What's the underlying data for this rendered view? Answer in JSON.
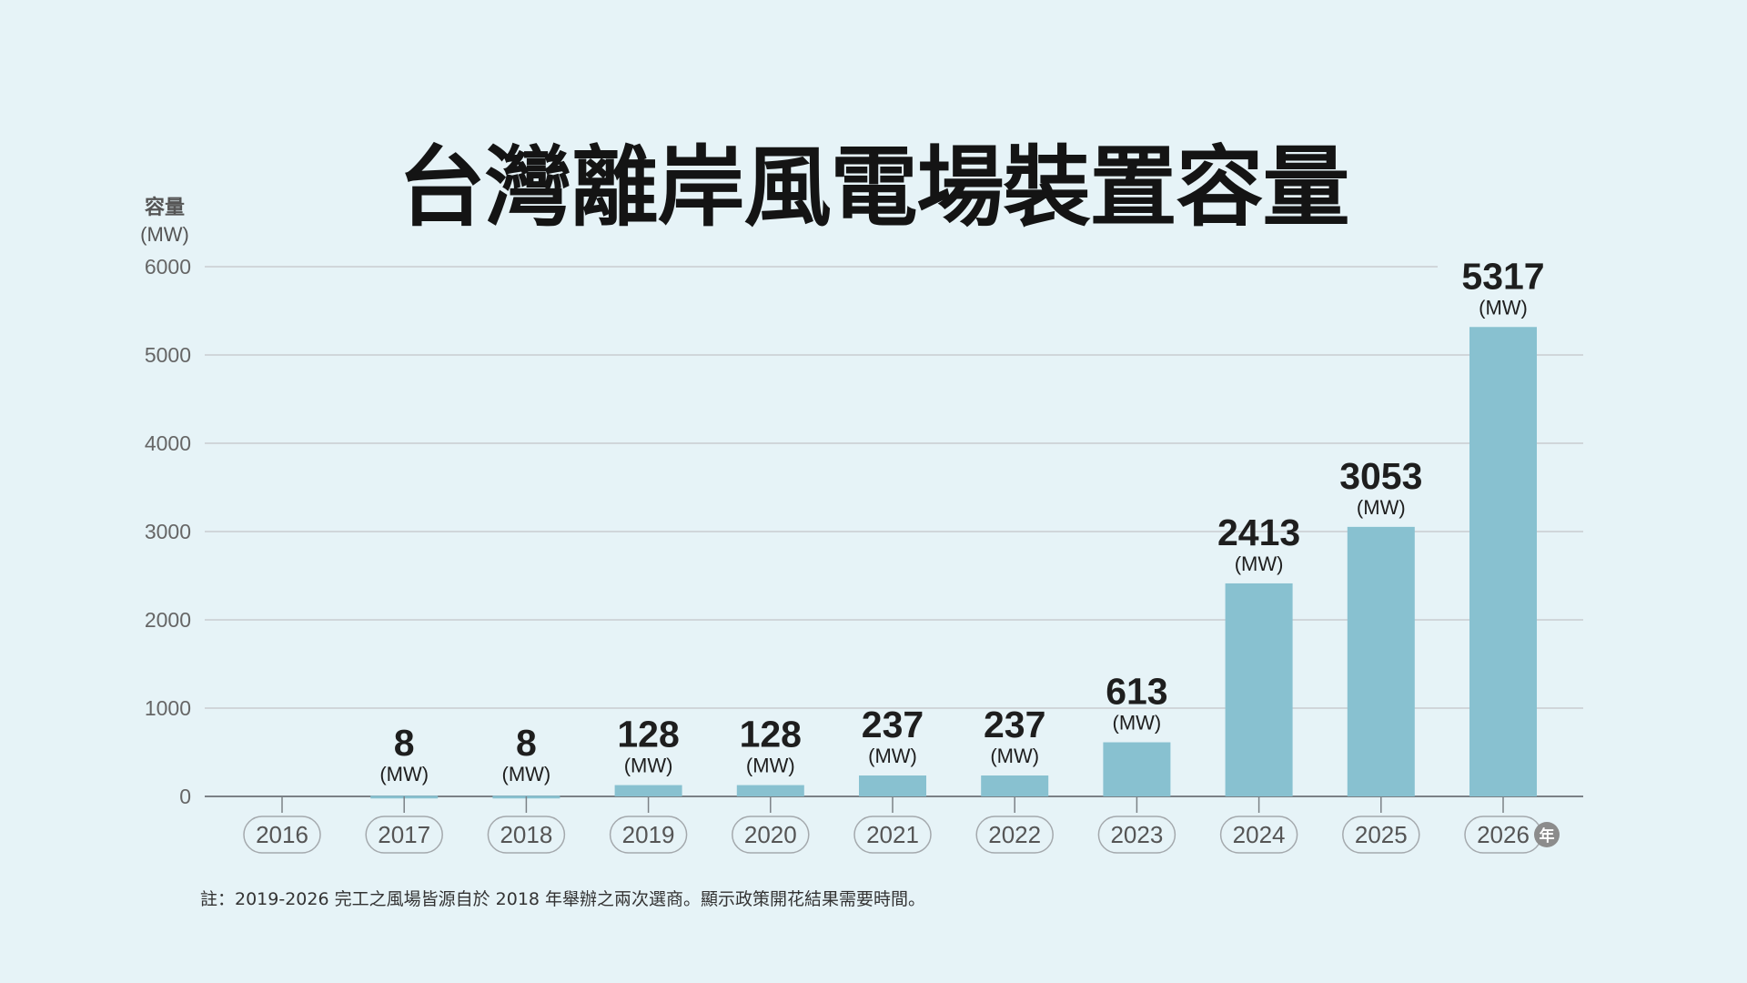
{
  "title": "台灣離岸風電場裝置容量",
  "y_unit": {
    "label": "容量",
    "unit": "(MW)"
  },
  "x_unit": "年",
  "note": "註：2019-2026 完工之風場皆源自於 2018 年舉辦之兩次選商。顯示政策開花結果需要時間。",
  "colors": {
    "bar": "#88c1d0",
    "background": "#e6f3f7",
    "grid": "#c9cdd0",
    "axis": "#7b8186",
    "value_text": "#1e1e1e",
    "year_badge": "#8c8c8c"
  },
  "chart_data": {
    "type": "bar",
    "categories": [
      "2016",
      "2017",
      "2018",
      "2019",
      "2020",
      "2021",
      "2022",
      "2023",
      "2024",
      "2025",
      "2026"
    ],
    "values": [
      0,
      8,
      8,
      128,
      128,
      237,
      237,
      613,
      2413,
      3053,
      5317
    ],
    "data_labels": [
      "",
      "8",
      "8",
      "128",
      "128",
      "237",
      "237",
      "613",
      "2413",
      "3053",
      "5317"
    ],
    "data_label_unit": "(MW)",
    "ylim": [
      0,
      6000
    ],
    "yticks": [
      0,
      1000,
      2000,
      3000,
      4000,
      5000,
      6000
    ],
    "grid": true,
    "ylabel": "容量 (MW)",
    "xlabel": "年"
  }
}
